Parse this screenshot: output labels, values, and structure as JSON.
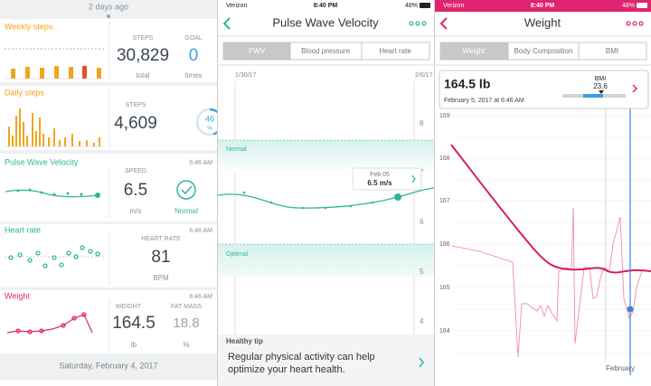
{
  "dashboard": {
    "header": "2 days ago",
    "weekly_steps": {
      "title": "Weekly steps",
      "steps_label": "STEPS",
      "steps": "30,829",
      "steps_unit": "total",
      "goal_label": "GOAL",
      "goal": "0",
      "goal_unit": "times"
    },
    "daily_steps": {
      "title": "Daily steps",
      "steps_label": "STEPS",
      "steps": "4,609",
      "percent": "46",
      "percent_unit": "%"
    },
    "pwv": {
      "title": "Pulse Wave Velocity",
      "time": "6:46 AM",
      "speed_label": "SPEED",
      "speed": "6.5",
      "speed_unit": "m/s",
      "status": "Normal"
    },
    "heart_rate": {
      "title": "Heart rate",
      "time": "6:46 AM",
      "hr_label": "HEART RATE",
      "hr": "81",
      "hr_unit": "BPM"
    },
    "weight": {
      "title": "Weight",
      "time": "6:46 AM",
      "weight_label": "WEIGHT",
      "weight": "164.5",
      "weight_unit": "lb",
      "fat_label": "FAT MASS",
      "fat": "18.8",
      "fat_unit": "%"
    },
    "date_divider": "Saturday, February 4, 2017"
  },
  "pwv_screen": {
    "status": {
      "carrier": "Verizon",
      "time": "8:40 PM",
      "battery": "48%"
    },
    "title": "Pulse Wave Velocity",
    "tabs": [
      "PWV",
      "Blood pressure",
      "Heart rate"
    ],
    "dates": [
      "1/30/17",
      "2/6/17"
    ],
    "yticks": [
      "8",
      "7",
      "6",
      "5",
      "4"
    ],
    "zones": [
      "Normal",
      "Optimal"
    ],
    "tooltip": {
      "date": "Feb 05",
      "value": "6.5 m/s"
    },
    "tip": {
      "heading": "Healthy tip",
      "line1": "Regular physical activity can help",
      "line2": "optimize your heart health."
    }
  },
  "weight_screen": {
    "status": {
      "carrier": "Verizon",
      "time": "8:40 PM",
      "battery": "48%"
    },
    "title": "Weight",
    "tabs": [
      "Weight",
      "Body Composition",
      "BMI"
    ],
    "tooltip": {
      "value": "164.5 lb",
      "date": "February 5, 2017 at 6:46 AM",
      "bmi_label": "BMI",
      "bmi": "23.6"
    },
    "yticks": [
      "169",
      "168",
      "167",
      "166",
      "165",
      "164"
    ],
    "xlabel": "February"
  }
}
